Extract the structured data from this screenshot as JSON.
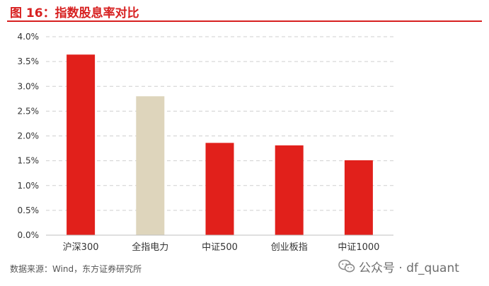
{
  "title": "图 16：指数股息率对比",
  "source": "数据来源：Wind，东方证券研究所",
  "watermark": "公众号 · df_quant",
  "colors": {
    "accent": "#d72020",
    "bar_red": "#e1201b",
    "bar_beige": "#ded5bc",
    "grid": "#cfcfcf"
  },
  "chart_data": {
    "type": "bar",
    "title": "",
    "xlabel": "",
    "ylabel": "",
    "categories": [
      "沪深300",
      "全指电力",
      "中证500",
      "创业板指",
      "中证1000"
    ],
    "values": [
      3.64,
      2.8,
      1.86,
      1.81,
      1.51
    ],
    "bar_colors": [
      "#e1201b",
      "#ded5bc",
      "#e1201b",
      "#e1201b",
      "#e1201b"
    ],
    "ylim": [
      0,
      4.0
    ],
    "ytick_values": [
      0,
      0.5,
      1.0,
      1.5,
      2.0,
      2.5,
      3.0,
      3.5,
      4.0
    ],
    "ytick_labels": [
      "0.0%",
      "0.5%",
      "1.0%",
      "1.5%",
      "2.0%",
      "2.5%",
      "3.0%",
      "3.5%",
      "4.0%"
    ],
    "grid": true,
    "grid_style": "dashed",
    "legend": "none"
  }
}
